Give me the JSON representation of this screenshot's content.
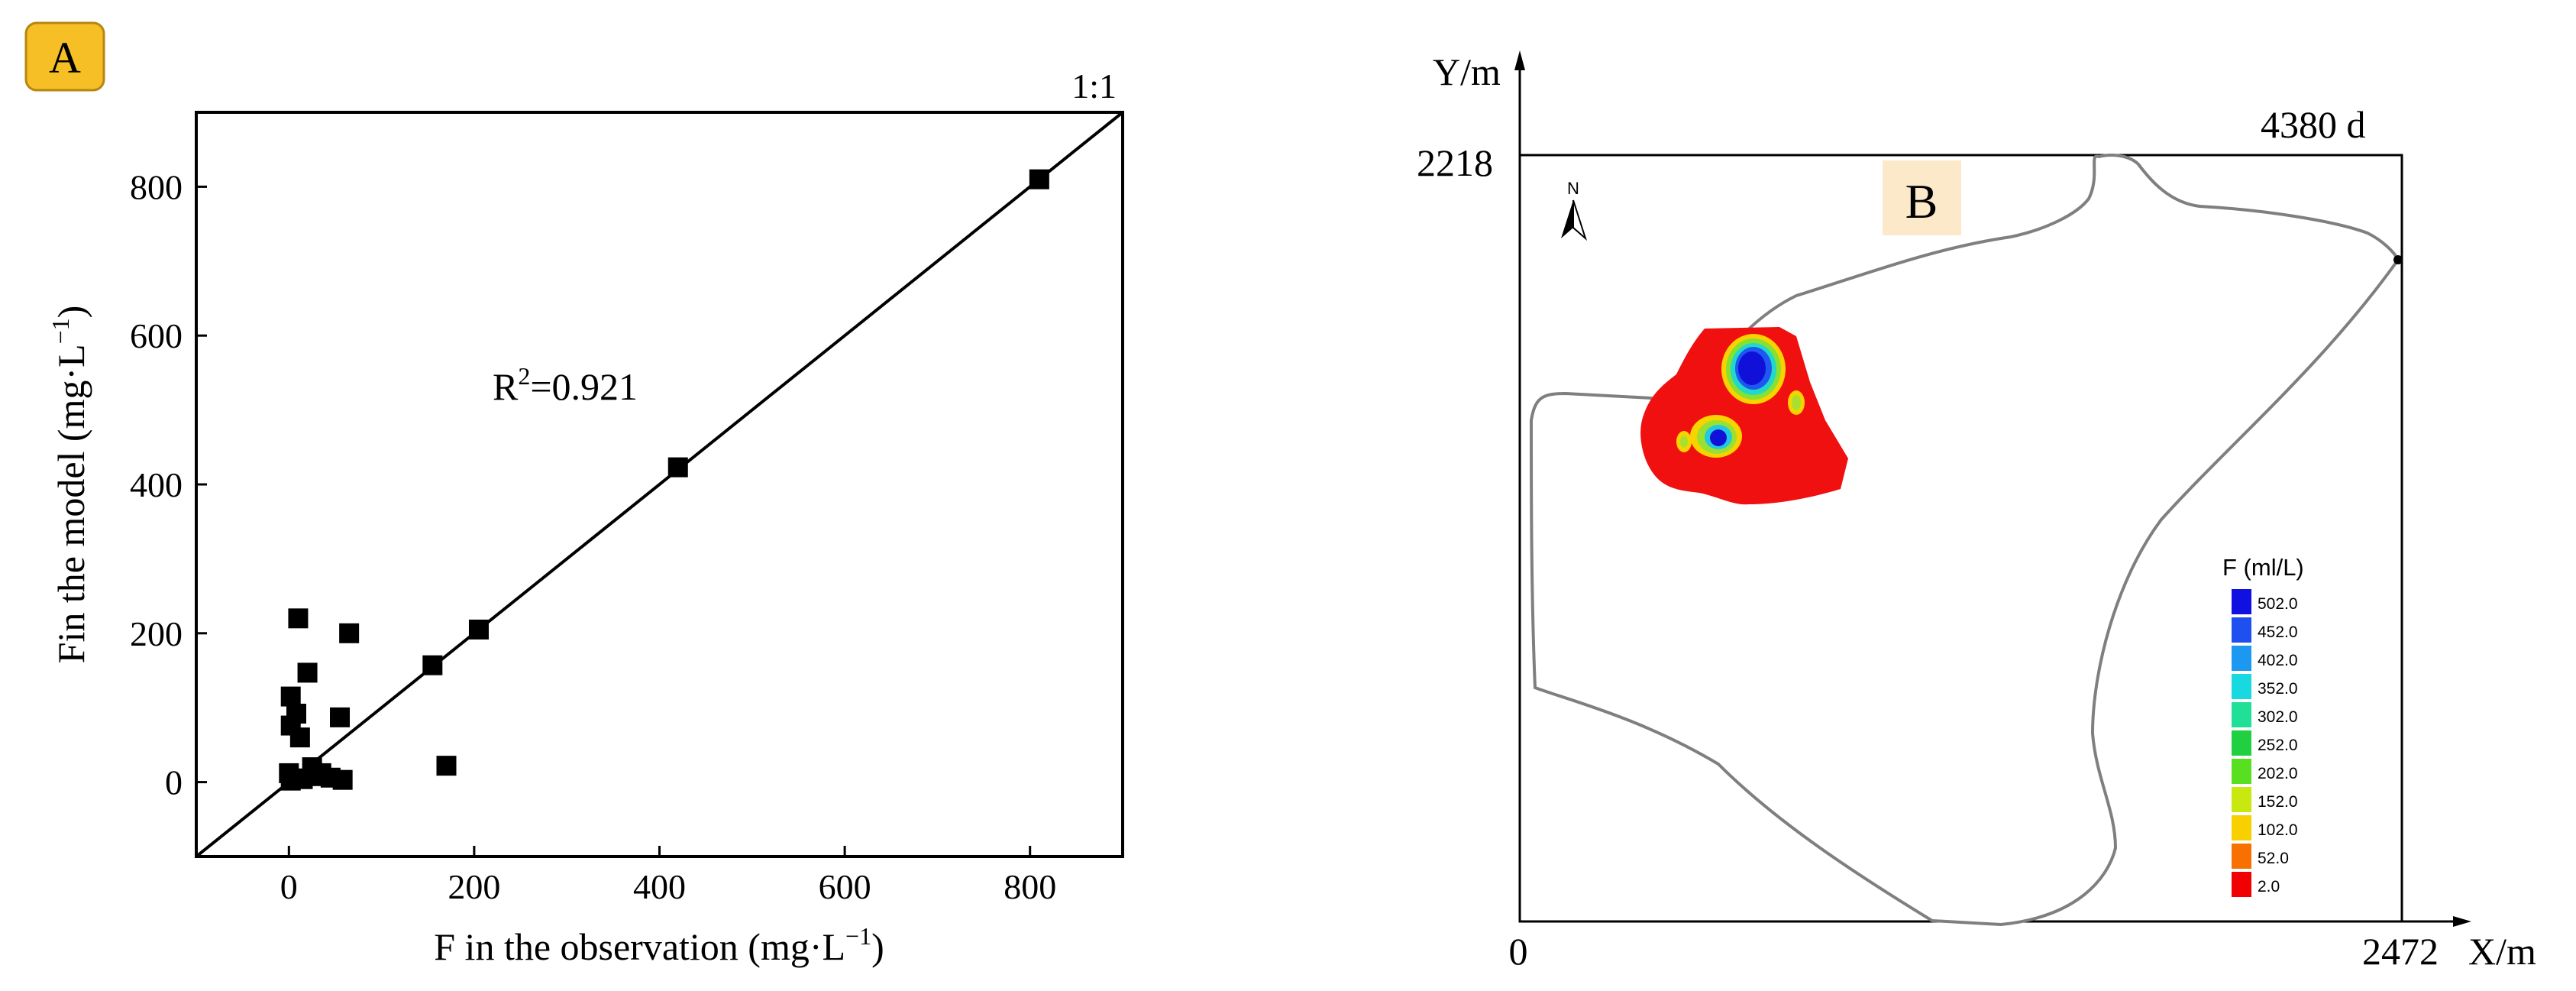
{
  "panel_a": {
    "badge": "A",
    "ref_line_label": "1:1",
    "r2_label": "R",
    "r2_sup": "2",
    "r2_value": "=0.921",
    "xlabel": "F in the observation (mg·L",
    "xlabel_sup": "−1",
    "xlabel_end": ")",
    "ylabel": "Fin the model (mg·L",
    "ylabel_sup": "−1",
    "ylabel_end": ")"
  },
  "panel_b": {
    "badge": "B",
    "time_label": "4380 d",
    "y_axis_name": "Y/m",
    "x_axis_name": "X/m",
    "y_max_label": "2218",
    "x_min_label": "0",
    "x_max_label": "2472",
    "legend_title": "F (ml/L)",
    "legend_levels": [
      {
        "label": "502.0",
        "color": "#1010e0"
      },
      {
        "label": "452.0",
        "color": "#1e50f0"
      },
      {
        "label": "402.0",
        "color": "#1c98f0"
      },
      {
        "label": "352.0",
        "color": "#18d8e0"
      },
      {
        "label": "302.0",
        "color": "#20e098"
      },
      {
        "label": "252.0",
        "color": "#20d040"
      },
      {
        "label": "202.0",
        "color": "#58e020"
      },
      {
        "label": "152.0",
        "color": "#c8e810"
      },
      {
        "label": "102.0",
        "color": "#f8d000"
      },
      {
        "label": "52.0",
        "color": "#f87000"
      },
      {
        "label": "2.0",
        "color": "#f00000"
      }
    ],
    "north_label": "N"
  },
  "chart_data": [
    {
      "type": "scatter",
      "xlim": [
        -100,
        900
      ],
      "ylim": [
        -100,
        900
      ],
      "x_ticks": [
        0,
        200,
        400,
        600,
        800
      ],
      "y_ticks": [
        0,
        200,
        400,
        600,
        800
      ],
      "reference_line": "1:1",
      "points": [
        {
          "x": 810,
          "y": 810
        },
        {
          "x": 420,
          "y": 423
        },
        {
          "x": 205,
          "y": 205
        },
        {
          "x": 155,
          "y": 157
        },
        {
          "x": 65,
          "y": 200
        },
        {
          "x": 10,
          "y": 220
        },
        {
          "x": 20,
          "y": 147
        },
        {
          "x": 2,
          "y": 115
        },
        {
          "x": 55,
          "y": 87
        },
        {
          "x": 8,
          "y": 92
        },
        {
          "x": 2,
          "y": 76
        },
        {
          "x": 12,
          "y": 60
        },
        {
          "x": 170,
          "y": 22
        },
        {
          "x": 25,
          "y": 20
        },
        {
          "x": 0,
          "y": 12
        },
        {
          "x": 35,
          "y": 12
        },
        {
          "x": 45,
          "y": 6
        },
        {
          "x": 30,
          "y": 8
        },
        {
          "x": 5,
          "y": 5
        },
        {
          "x": 15,
          "y": 4
        },
        {
          "x": 58,
          "y": 3
        },
        {
          "x": 2,
          "y": 2
        }
      ]
    },
    {
      "type": "heatmap",
      "x_range": [
        0,
        2472
      ],
      "y_range": [
        0,
        2218
      ],
      "contour_levels": [
        2.0,
        52.0,
        102.0,
        152.0,
        202.0,
        252.0,
        302.0,
        352.0,
        402.0,
        452.0,
        502.0
      ]
    }
  ]
}
